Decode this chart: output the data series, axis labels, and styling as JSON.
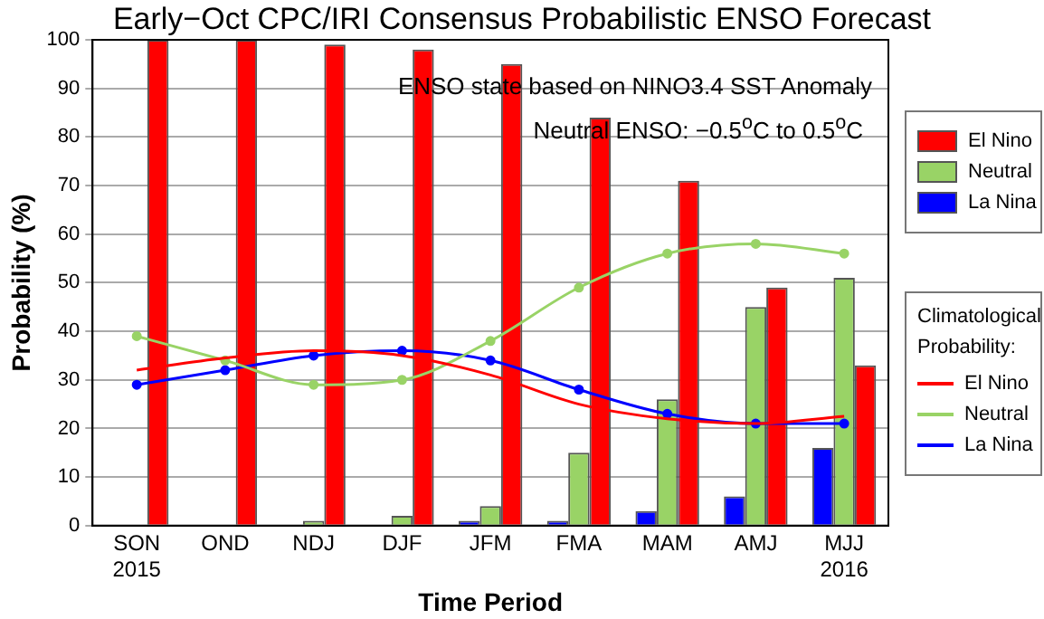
{
  "chart_data": {
    "type": "bar",
    "title": "Early−Oct CPC/IRI Consensus Probabilistic ENSO Forecast",
    "xlabel": "Time Period",
    "ylabel": "Probability (%)",
    "categories": [
      "SON\n2015",
      "OND",
      "NDJ",
      "DJF",
      "JFM",
      "FMA",
      "MAM",
      "AMJ",
      "MJJ\n2016"
    ],
    "series": [
      {
        "name": "La Nina",
        "color": "#0000ff",
        "values": [
          0,
          0,
          0,
          0,
          1,
          1,
          3,
          6,
          16
        ]
      },
      {
        "name": "Neutral",
        "color": "#99d366",
        "values": [
          0,
          0,
          1,
          2,
          4,
          15,
          26,
          45,
          51
        ]
      },
      {
        "name": "El Nino",
        "color": "#ff0000",
        "values": [
          100,
          100,
          99,
          98,
          95,
          84,
          71,
          49,
          33
        ]
      },
      {
        "name": "El Nino",
        "type": "line",
        "color": "#ff0000",
        "marker": "none",
        "values": [
          32,
          34.5,
          36,
          35,
          31,
          25,
          22,
          21,
          22.5
        ]
      },
      {
        "name": "Neutral",
        "type": "line",
        "color": "#99d366",
        "marker": "circle",
        "values": [
          39,
          34,
          29,
          30,
          38,
          49,
          56,
          58,
          56
        ]
      },
      {
        "name": "La Nina",
        "type": "line",
        "color": "#0000ff",
        "marker": "circle",
        "values": [
          29,
          32,
          35,
          36,
          34,
          28,
          23,
          21,
          21
        ]
      }
    ],
    "ylim": [
      0,
      100
    ],
    "yticks": [
      0,
      10,
      20,
      30,
      40,
      50,
      60,
      70,
      80,
      90,
      100
    ],
    "grid": "y",
    "legend": "right",
    "legend_title": "Climatological Probability:",
    "annotations": [
      "ENSO state based on NINO3.4 SST Anomaly",
      "Neutral ENSO: −0.5$^{o}$C to 0.5$^{o}$C"
    ]
  }
}
